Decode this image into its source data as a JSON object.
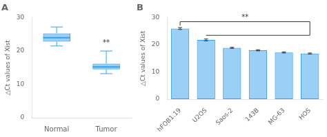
{
  "chart_data": [
    {
      "type": "box",
      "title": "A",
      "ylabel": "△Ct values of Xist",
      "categories": [
        "Normal",
        "Tumor"
      ],
      "boxes": [
        {
          "median": 24.0,
          "q1": 22.8,
          "q3": 25.3,
          "whislo": 21.5,
          "whishi": 27.2
        },
        {
          "median": 15.2,
          "q1": 14.5,
          "q3": 16.2,
          "whislo": 13.2,
          "whishi": 20.0
        }
      ],
      "ylim": [
        0,
        30
      ],
      "yticks": [
        0,
        10,
        20,
        30
      ],
      "grid": false,
      "annotations": [
        {
          "text": "**",
          "x": "Tumor",
          "y": 21.2
        }
      ]
    },
    {
      "type": "bar",
      "title": "B",
      "ylabel": "△Ct values of Xist",
      "categories": [
        "hFOB1.19",
        "U2OS",
        "Saos-2",
        "143B",
        "MG-63",
        "HOS"
      ],
      "values": [
        26.0,
        21.8,
        18.9,
        18.0,
        17.2,
        16.8
      ],
      "errors": [
        0.35,
        0.35,
        0.2,
        0.2,
        0.2,
        0.2
      ],
      "ylim": [
        0,
        30
      ],
      "yticks": [
        0,
        10,
        20,
        30
      ],
      "grid": false,
      "annotations": [
        {
          "text": "**",
          "from": "hFOB1.19",
          "to": "HOS",
          "y": 28.5,
          "line2_from": "U2OS",
          "line2_y": 23.5
        }
      ]
    }
  ]
}
